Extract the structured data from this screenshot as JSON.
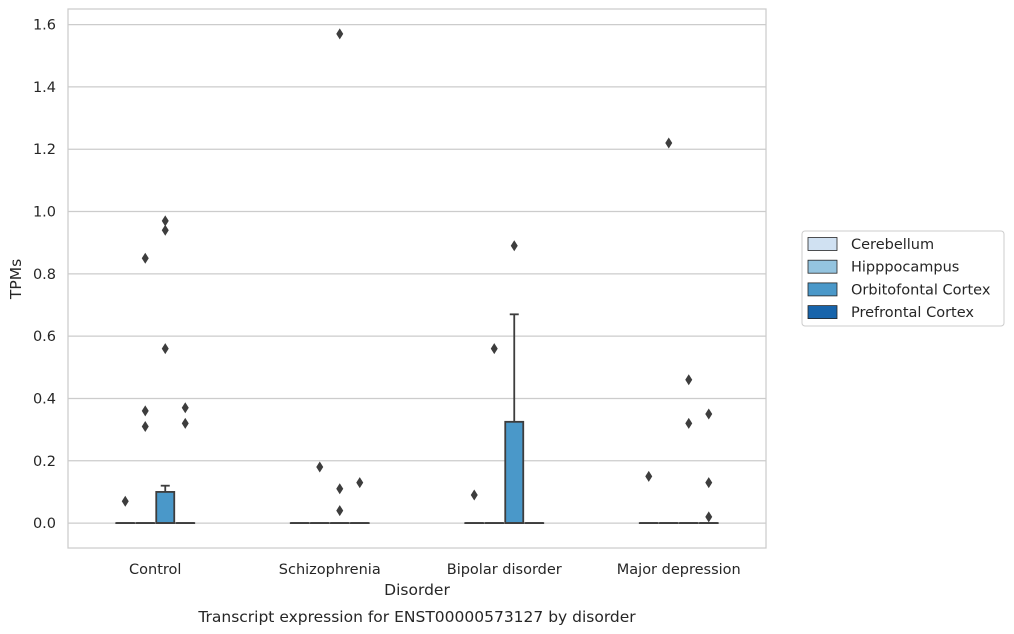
{
  "chart_data": {
    "type": "box",
    "title": "",
    "caption": "Transcript expression for ENST00000573127 by disorder",
    "xlabel": "Disorder",
    "ylabel": "TPMs",
    "ylim": [
      -0.08,
      1.65
    ],
    "yticks": [
      0.0,
      0.2,
      0.4,
      0.6,
      0.8,
      1.0,
      1.2,
      1.4,
      1.6
    ],
    "ytick_labels": [
      "0.0",
      "0.2",
      "0.4",
      "0.6",
      "0.8",
      "1.0",
      "1.2",
      "1.4",
      "1.6"
    ],
    "grid": "horizontal",
    "legend_placement": "right-outside",
    "categories": [
      "Control",
      "Schizophrenia",
      "Bipolar disorder",
      "Major depression"
    ],
    "series": [
      {
        "name": "Cerebellum",
        "color": "#d0e1f2",
        "boxes": [
          {
            "q1": 0,
            "median": 0,
            "q3": 0,
            "whisker_low": 0,
            "whisker_high": 0,
            "outliers": [
              0.07
            ]
          },
          {
            "q1": 0,
            "median": 0,
            "q3": 0,
            "whisker_low": 0,
            "whisker_high": 0,
            "outliers": []
          },
          {
            "q1": 0,
            "median": 0,
            "q3": 0,
            "whisker_low": 0,
            "whisker_high": 0,
            "outliers": [
              0.09
            ]
          },
          {
            "q1": 0,
            "median": 0,
            "q3": 0,
            "whisker_low": 0,
            "whisker_high": 0,
            "outliers": [
              0.15
            ]
          }
        ]
      },
      {
        "name": "Hipppocampus",
        "color": "#94c4df",
        "boxes": [
          {
            "q1": 0,
            "median": 0,
            "q3": 0,
            "whisker_low": 0,
            "whisker_high": 0,
            "outliers": [
              0.85,
              0.36,
              0.31
            ]
          },
          {
            "q1": 0,
            "median": 0,
            "q3": 0,
            "whisker_low": 0,
            "whisker_high": 0,
            "outliers": [
              0.18
            ]
          },
          {
            "q1": 0,
            "median": 0,
            "q3": 0,
            "whisker_low": 0,
            "whisker_high": 0,
            "outliers": [
              0.56
            ]
          },
          {
            "q1": 0,
            "median": 0,
            "q3": 0,
            "whisker_low": 0,
            "whisker_high": 0,
            "outliers": [
              1.22
            ]
          }
        ]
      },
      {
        "name": "Orbitofontal Cortex",
        "color": "#4a98c9",
        "boxes": [
          {
            "q1": 0,
            "median": 0,
            "q3": 0.1,
            "whisker_low": 0,
            "whisker_high": 0.12,
            "outliers": [
              0.97,
              0.94,
              0.56
            ]
          },
          {
            "q1": 0,
            "median": 0,
            "q3": 0,
            "whisker_low": 0,
            "whisker_high": 0,
            "outliers": [
              1.57,
              0.11,
              0.04
            ]
          },
          {
            "q1": 0,
            "median": 0,
            "q3": 0.325,
            "whisker_low": 0,
            "whisker_high": 0.67,
            "outliers": [
              0.89
            ]
          },
          {
            "q1": 0,
            "median": 0,
            "q3": 0,
            "whisker_low": 0,
            "whisker_high": 0,
            "outliers": [
              0.46,
              0.32
            ]
          }
        ]
      },
      {
        "name": "Prefrontal Cortex",
        "color": "#1764ab",
        "boxes": [
          {
            "q1": 0,
            "median": 0,
            "q3": 0,
            "whisker_low": 0,
            "whisker_high": 0,
            "outliers": [
              0.37,
              0.32
            ]
          },
          {
            "q1": 0,
            "median": 0,
            "q3": 0,
            "whisker_low": 0,
            "whisker_high": 0,
            "outliers": [
              0.13
            ]
          },
          {
            "q1": 0,
            "median": 0,
            "q3": 0,
            "whisker_low": 0,
            "whisker_high": 0,
            "outliers": []
          },
          {
            "q1": 0,
            "median": 0,
            "q3": 0,
            "whisker_low": 0,
            "whisker_high": 0,
            "outliers": [
              0.35,
              0.13,
              0.02
            ]
          }
        ]
      }
    ]
  }
}
